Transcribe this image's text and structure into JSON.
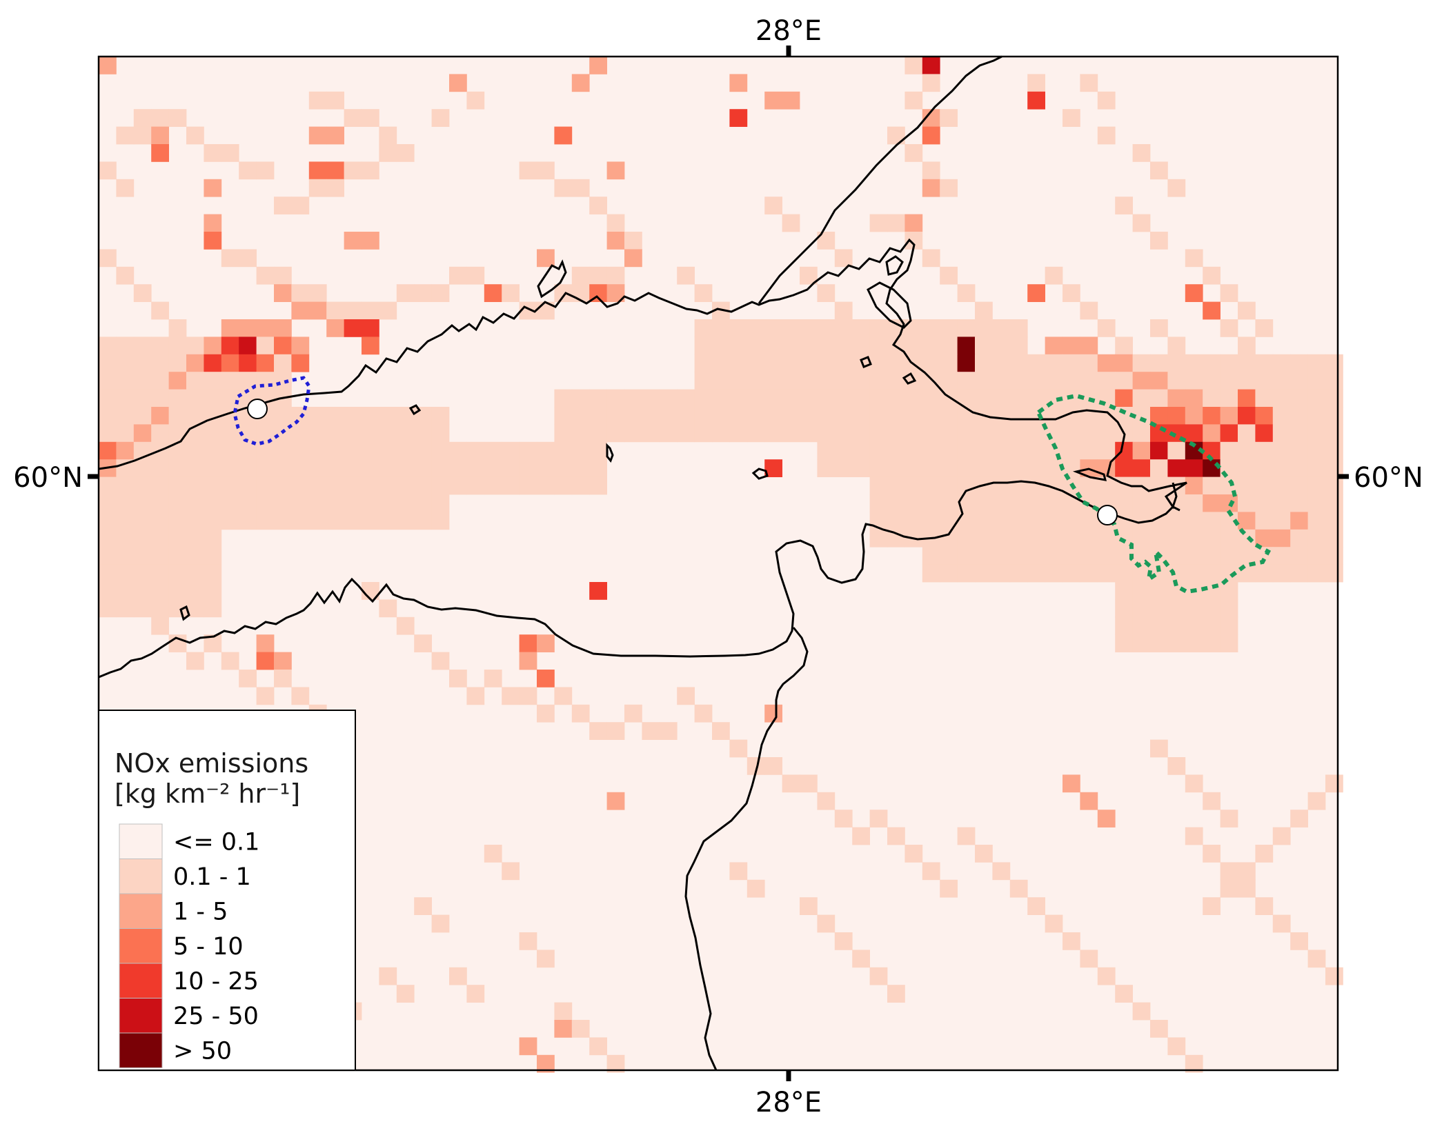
{
  "map": {
    "lon_label": "28°E",
    "lat_label": "60°N"
  },
  "legend": {
    "title_line1": "NOx emissions",
    "title_line2": "[kg km⁻² hr⁻¹]",
    "classes": [
      {
        "label": "<= 0.1",
        "color": "#fdf1ed"
      },
      {
        "label": "0.1 - 1",
        "color": "#fcd4c3"
      },
      {
        "label": "1 - 5",
        "color": "#fca68a"
      },
      {
        "label": "5 - 10",
        "color": "#fb7252"
      },
      {
        "label": "10 - 25",
        "color": "#f03a2c"
      },
      {
        "label": "25 - 50",
        "color": "#cc1016"
      },
      {
        "label": "> 50",
        "color": "#7a0106"
      }
    ]
  },
  "markers": [
    {
      "name": "helsinki-point",
      "boundary_color": "#1f1fd6"
    },
    {
      "name": "st-petersburg-point",
      "boundary_color": "#1a9a5a"
    }
  ],
  "colors": {
    "coastline": "#000000",
    "background_emission": "#fdf1ed"
  }
}
